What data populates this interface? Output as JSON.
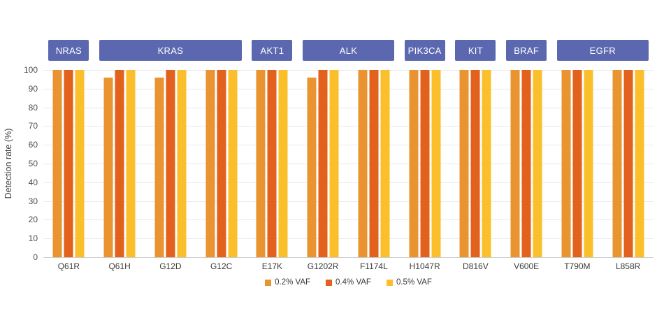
{
  "chart_data": {
    "type": "bar",
    "title": "",
    "xlabel": "",
    "ylabel": "Detection rate (%)",
    "ylim": [
      0,
      100
    ],
    "y_tick_labels": [
      "0",
      "10",
      "20",
      "30",
      "40",
      "50",
      "60",
      "70",
      "80",
      "90",
      "100"
    ],
    "grid": true,
    "legend_position": "bottom",
    "categories": [
      "Q61R",
      "Q61H",
      "G12D",
      "G12C",
      "E17K",
      "G1202R",
      "F1174L",
      "H1047R",
      "D816V",
      "V600E",
      "T790M",
      "L858R"
    ],
    "gene_groups": [
      {
        "gene": "NRAS",
        "first_index": 0,
        "last_index": 0
      },
      {
        "gene": "KRAS",
        "first_index": 1,
        "last_index": 3
      },
      {
        "gene": "AKT1",
        "first_index": 4,
        "last_index": 4
      },
      {
        "gene": "ALK",
        "first_index": 5,
        "last_index": 6
      },
      {
        "gene": "PIK3CA",
        "first_index": 7,
        "last_index": 7
      },
      {
        "gene": "KIT",
        "first_index": 8,
        "last_index": 8
      },
      {
        "gene": "BRAF",
        "first_index": 9,
        "last_index": 9
      },
      {
        "gene": "EGFR",
        "first_index": 10,
        "last_index": 11
      }
    ],
    "series": [
      {
        "name": "0.2% VAF",
        "color": "#E99430",
        "values": [
          100,
          96,
          96,
          100,
          100,
          96,
          100,
          100,
          100,
          100,
          100,
          100
        ]
      },
      {
        "name": "0.4% VAF",
        "color": "#E2611C",
        "values": [
          100,
          100,
          100,
          100,
          100,
          100,
          100,
          100,
          100,
          100,
          100,
          100
        ]
      },
      {
        "name": "0.5% VAF",
        "color": "#FBBF2C",
        "values": [
          100,
          100,
          100,
          100,
          100,
          100,
          100,
          100,
          100,
          100,
          100,
          100
        ]
      }
    ]
  },
  "colors": {
    "gene_box": "#5B68B0",
    "gene_box_text": "#FFFFFF",
    "gridline": "#E9E9E9",
    "baseline": "#CCCCCC"
  }
}
